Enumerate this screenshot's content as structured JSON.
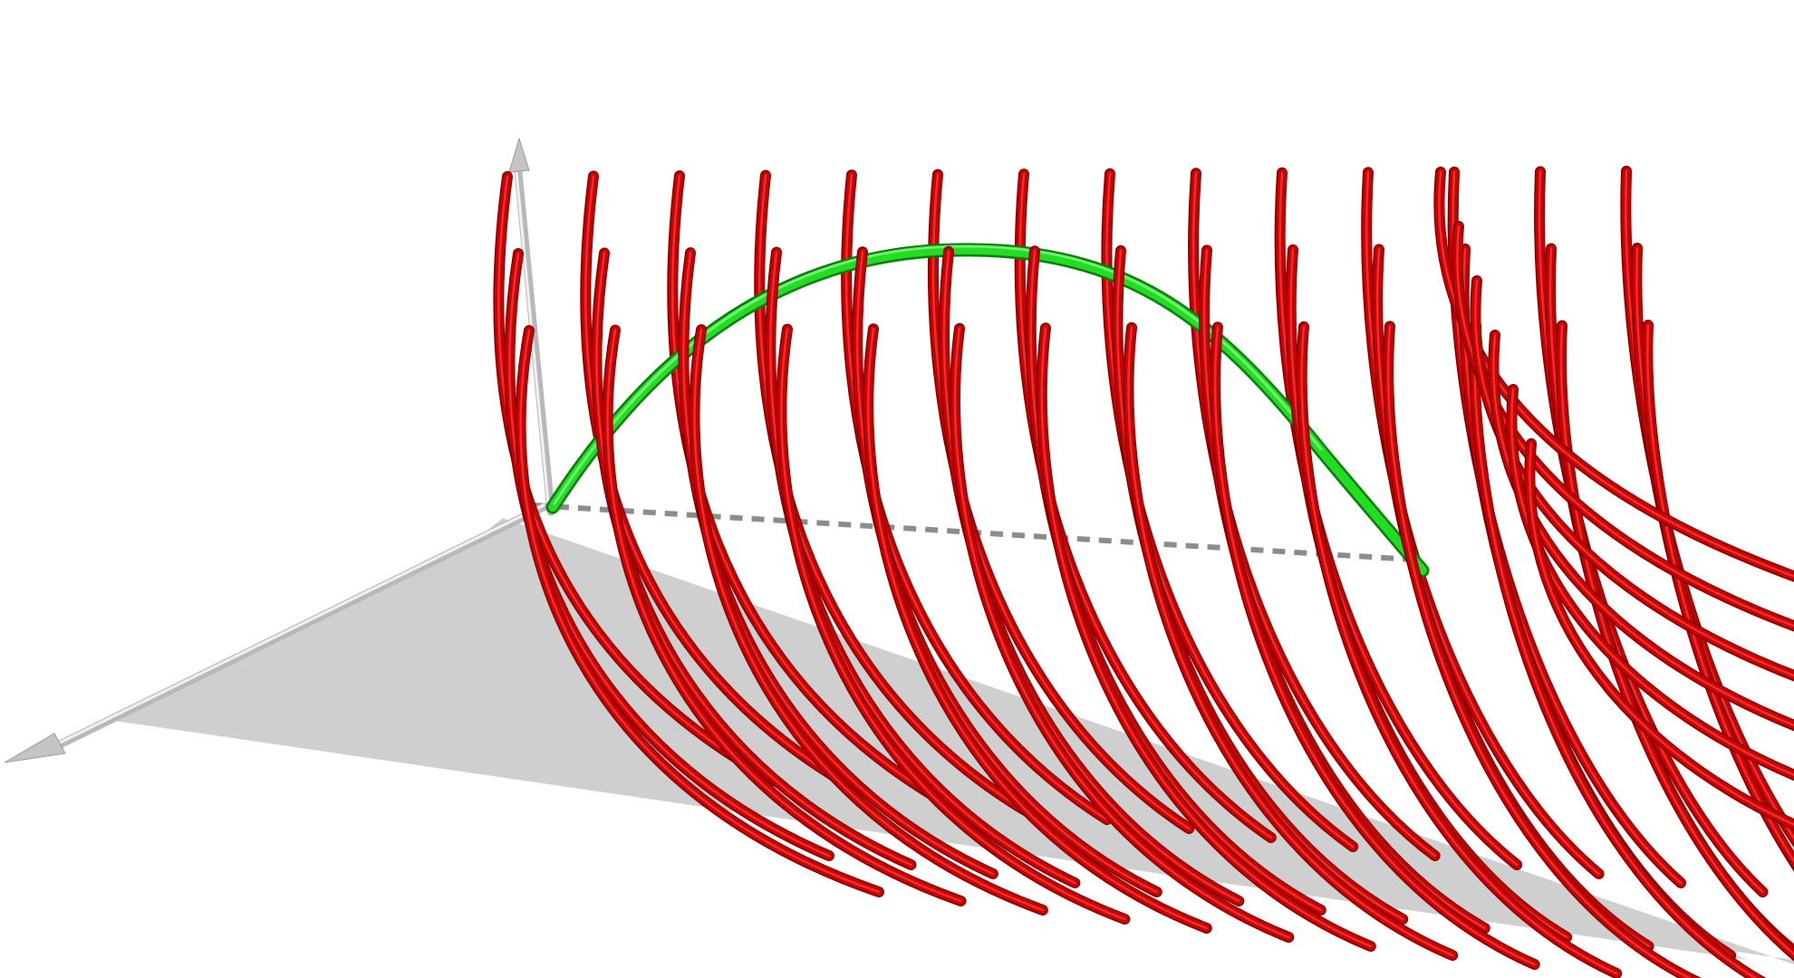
{
  "scene": {
    "colors": {
      "background": "#ffffff",
      "field_lines": "#cc0000",
      "reference_curve": "#22dd22",
      "ground_plane": "#cfcfcf",
      "axes": "#b8b8b8"
    },
    "field_lines": {
      "rows": 3,
      "columns": 14
    },
    "axes": [
      "vertical-axis",
      "horizontal-axis"
    ]
  }
}
